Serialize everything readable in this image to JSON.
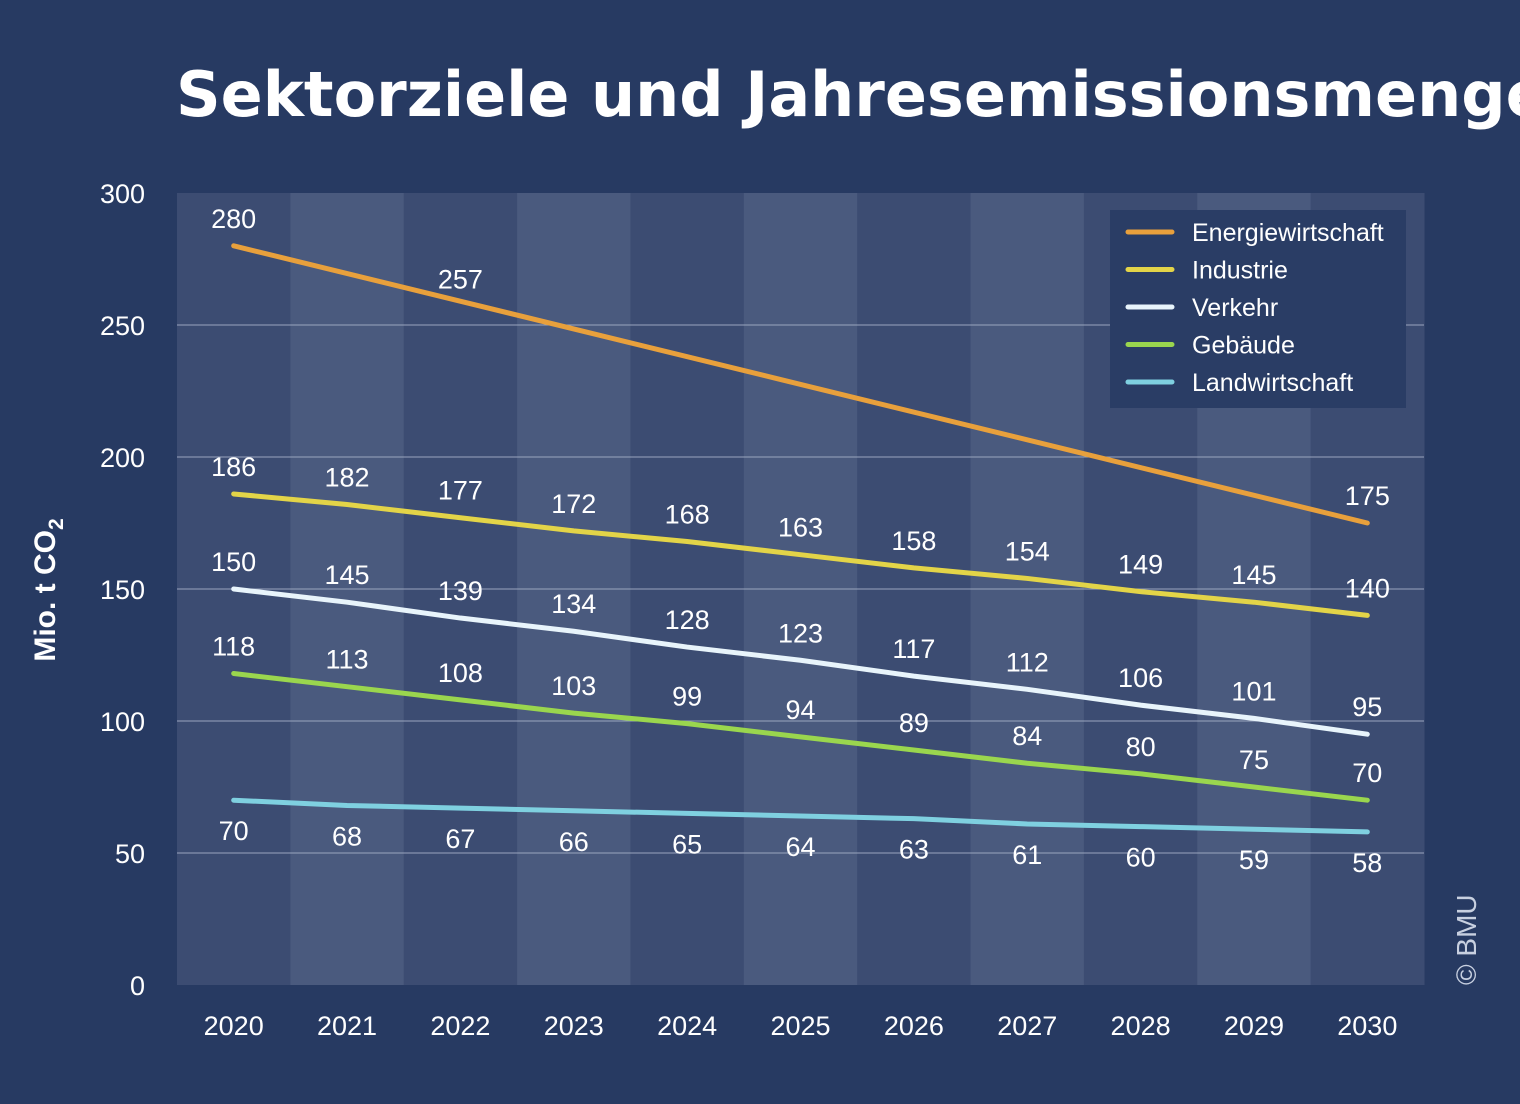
{
  "title": "Sektorziele und Jahresemissionsmengen",
  "credit": "© BMU",
  "colors": {
    "background": "#273a62",
    "plot_band_light": "#4a5a7e",
    "plot_band_dark": "#3c4c72",
    "grid": "#9aa5be",
    "legend_bg": "#2a3d65"
  },
  "chart_data": {
    "type": "line",
    "title": "Sektorziele und Jahresemissionsmengen",
    "ylabel": "Mio. t CO",
    "ylabel_subscript": "2",
    "xlabel": "",
    "ylim": [
      0,
      300
    ],
    "yticks": [
      0,
      50,
      100,
      150,
      200,
      250,
      300
    ],
    "x": [
      2020,
      2021,
      2022,
      2023,
      2024,
      2025,
      2026,
      2027,
      2028,
      2029,
      2030
    ],
    "grid": true,
    "legend_position": "top-right",
    "series": [
      {
        "name": "Energiewirtschaft",
        "color": "#e8a03c",
        "values": [
          280,
          null,
          257,
          null,
          null,
          null,
          null,
          null,
          null,
          null,
          175
        ],
        "line_x": [
          2020,
          2030
        ],
        "line_y": [
          280,
          175
        ],
        "label_pos": "above"
      },
      {
        "name": "Industrie",
        "color": "#e3d448",
        "values": [
          186,
          182,
          177,
          172,
          168,
          163,
          158,
          154,
          149,
          145,
          140
        ],
        "label_pos": "above"
      },
      {
        "name": "Verkehr",
        "color": "#e8f4fb",
        "values": [
          150,
          145,
          139,
          134,
          128,
          123,
          117,
          112,
          106,
          101,
          95
        ],
        "label_pos": "above"
      },
      {
        "name": "Gebäude",
        "color": "#9ad64e",
        "values": [
          118,
          113,
          108,
          103,
          99,
          94,
          89,
          84,
          80,
          75,
          70
        ],
        "label_pos": "above"
      },
      {
        "name": "Landwirtschaft",
        "color": "#7fd0e0",
        "values": [
          70,
          68,
          67,
          66,
          65,
          64,
          63,
          61,
          60,
          59,
          58
        ],
        "label_pos": "below"
      }
    ]
  }
}
